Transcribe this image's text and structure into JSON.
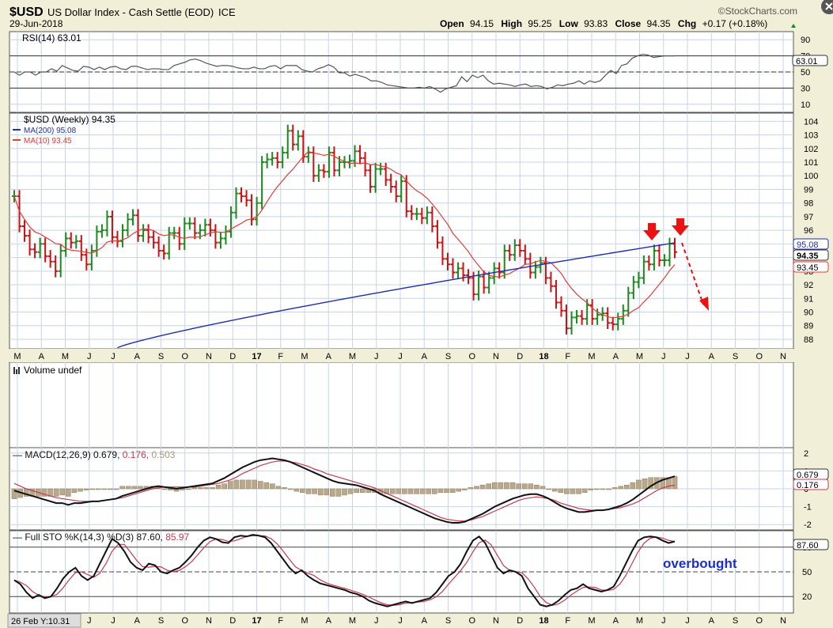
{
  "header": {
    "symbol": "$USD",
    "name": "US Dollar Index - Cash Settle (EOD)",
    "exchange": "ICE",
    "date": "29-Jun-2018",
    "watermark": "©StockCharts.com",
    "open_label": "Open",
    "open": "94.15",
    "high_label": "High",
    "high": "95.25",
    "low_label": "Low",
    "low": "93.83",
    "close_label": "Close",
    "close": "94.35",
    "chg_label": "Chg",
    "chg": "+0.17 (+0.18%)",
    "up_arrow_icon": "up-triangle-icon",
    "close_icon": "close-circle-icon"
  },
  "colors": {
    "background": "#f1efd8",
    "panel": "#ffffff",
    "grid": "#c8d4e8",
    "up_bar": "#1c8a1c",
    "down_bar": "#cc1111",
    "ma200": "#1f2fa8",
    "ma10": "#e03c3c",
    "annotation_blue": "#1a2fd0",
    "arrow_red": "#ee1111",
    "histogram": "#b9a98a"
  },
  "month_axis": {
    "labels": [
      "M",
      "A",
      "M",
      "J",
      "J",
      "A",
      "S",
      "O",
      "N",
      "D",
      "17",
      "F",
      "M",
      "A",
      "M",
      "J",
      "J",
      "A",
      "S",
      "O",
      "N",
      "D",
      "18",
      "F",
      "M",
      "A",
      "M",
      "J",
      "J",
      "A",
      "S",
      "O",
      "N"
    ],
    "bold": [
      "17",
      "18"
    ]
  },
  "bottom_readout": "26 Feb Y:10.31",
  "annotation": "overbought",
  "chart_data": [
    {
      "panel": "rsi",
      "type": "line",
      "title": "RSI(14) 63.01",
      "yticks": [
        90,
        70,
        50,
        30,
        10
      ],
      "ylim": [
        0,
        100
      ],
      "reference_lines": [
        70,
        50,
        30
      ],
      "last_value": "63.01",
      "values": [
        50,
        46,
        50,
        50,
        46,
        50,
        50,
        54,
        51,
        58,
        55,
        52,
        51,
        57,
        56,
        53,
        56,
        53,
        56,
        57,
        54,
        53,
        57,
        57,
        55,
        53,
        54,
        54,
        53,
        53,
        58,
        60,
        62,
        65,
        66,
        64,
        61,
        59,
        57,
        58,
        58,
        57,
        55,
        54,
        54,
        56,
        54,
        54,
        57,
        58,
        54,
        58,
        58,
        58,
        53,
        51,
        50,
        54,
        56,
        59,
        56,
        49,
        49,
        45,
        47,
        45,
        43,
        39,
        39,
        37,
        34,
        33,
        32,
        31,
        30,
        30,
        31,
        30,
        32,
        29,
        25,
        29,
        31,
        33,
        44,
        38,
        46,
        43,
        46,
        39,
        35,
        36,
        35,
        34,
        32,
        34,
        35,
        32,
        33,
        32,
        29,
        31,
        34,
        33,
        35,
        36,
        39,
        35,
        39,
        37,
        39,
        46,
        52,
        48,
        58,
        60,
        67,
        70,
        72,
        71,
        68,
        69,
        70,
        70,
        70
      ]
    },
    {
      "panel": "price",
      "type": "ohlc",
      "title": "$USD (Weekly) 94.35",
      "yticks": [
        104,
        103,
        102,
        101,
        100,
        99,
        98,
        97,
        96,
        95,
        94,
        93,
        92,
        91,
        90,
        89,
        88
      ],
      "ylim": [
        87.3,
        104.6
      ],
      "series": [
        {
          "name": "MA(200) 95.08",
          "last": "95.08"
        },
        {
          "name": "MA(10) 93.45",
          "last": "93.45"
        }
      ],
      "last_close": "94.35",
      "closes": [
        98.5,
        96.3,
        95.6,
        94.6,
        94.4,
        95.0,
        94.1,
        93.7,
        93.0,
        94.5,
        95.4,
        95.1,
        95.2,
        94.2,
        93.5,
        94.5,
        95.9,
        96.0,
        97.0,
        95.5,
        95.2,
        96.0,
        96.8,
        97.1,
        95.6,
        96.0,
        95.5,
        95.1,
        94.5,
        94.3,
        95.8,
        95.8,
        95.0,
        96.5,
        96.5,
        95.8,
        96.0,
        96.4,
        96.0,
        95.1,
        95.4,
        95.9,
        97.3,
        98.7,
        98.5,
        98.2,
        96.8,
        98.0,
        101.0,
        101.2,
        101.3,
        101.0,
        101.7,
        103.3,
        102.3,
        102.9,
        101.4,
        101.7,
        100.0,
        100.4,
        100.3,
        101.7,
        100.4,
        101.0,
        101.0,
        101.1,
        101.8,
        101.3,
        100.4,
        99.2,
        100.5,
        100.5,
        99.7,
        99.2,
        98.5,
        99.6,
        97.4,
        97.2,
        97.2,
        96.9,
        97.3,
        96.3,
        95.1,
        93.9,
        93.5,
        92.9,
        93.2,
        92.7,
        92.5,
        91.3,
        92.6,
        91.8,
        92.5,
        93.2,
        92.9,
        94.5,
        94.2,
        94.9,
        94.5,
        93.9,
        92.9,
        93.3,
        93.6,
        92.5,
        91.9,
        90.7,
        90.1,
        88.8,
        89.6,
        89.7,
        89.5,
        90.5,
        89.5,
        89.8,
        89.9,
        89.2,
        89.1,
        89.5,
        90.1,
        91.4,
        92.2,
        92.5,
        93.7,
        93.5,
        94.5,
        93.8,
        93.8,
        95.0,
        94.4
      ]
    },
    {
      "panel": "volume",
      "type": "bar",
      "title": "Volume undef"
    },
    {
      "panel": "macd",
      "type": "line",
      "title": "MACD(12,26,9)",
      "macd_value": "0.679",
      "signal_value": "0.176",
      "histogram_value": "0.503",
      "yticks": [
        2,
        1,
        0,
        -1,
        -2
      ],
      "ylim": [
        -2.3,
        2.3
      ],
      "last_values": [
        "0.679",
        "0.176"
      ],
      "macd": [
        -0.1,
        -0.2,
        -0.3,
        -0.4,
        -0.5,
        -0.6,
        -0.7,
        -0.8,
        -0.8,
        -0.9,
        -0.8,
        -0.8,
        -0.75,
        -0.7,
        -0.7,
        -0.65,
        -0.6,
        -0.55,
        -0.4,
        -0.3,
        -0.2,
        -0.1,
        0.0,
        0.1,
        0.15,
        0.1,
        0.05,
        0.0,
        0.05,
        0.1,
        0.15,
        0.2,
        0.25,
        0.3,
        0.45,
        0.6,
        0.8,
        1.0,
        1.2,
        1.35,
        1.5,
        1.6,
        1.65,
        1.7,
        1.65,
        1.6,
        1.5,
        1.35,
        1.2,
        1.05,
        0.9,
        0.75,
        0.6,
        0.45,
        0.35,
        0.3,
        0.25,
        0.2,
        0.1,
        0.0,
        -0.1,
        -0.3,
        -0.45,
        -0.6,
        -0.75,
        -0.9,
        -1.05,
        -1.2,
        -1.35,
        -1.5,
        -1.65,
        -1.75,
        -1.85,
        -1.9,
        -1.9,
        -1.85,
        -1.7,
        -1.55,
        -1.4,
        -1.2,
        -1.0,
        -0.85,
        -0.7,
        -0.55,
        -0.45,
        -0.35,
        -0.3,
        -0.3,
        -0.4,
        -0.55,
        -0.75,
        -0.95,
        -1.1,
        -1.2,
        -1.3,
        -1.3,
        -1.25,
        -1.2,
        -1.2,
        -1.15,
        -1.05,
        -0.95,
        -0.8,
        -0.6,
        -0.35,
        -0.1,
        0.15,
        0.35,
        0.5,
        0.6,
        0.7
      ],
      "signal": [
        0.3,
        0.15,
        0.0,
        -0.1,
        -0.2,
        -0.3,
        -0.4,
        -0.5,
        -0.55,
        -0.6,
        -0.65,
        -0.7,
        -0.7,
        -0.7,
        -0.7,
        -0.65,
        -0.6,
        -0.55,
        -0.5,
        -0.4,
        -0.3,
        -0.2,
        -0.1,
        0.0,
        0.05,
        0.1,
        0.1,
        0.1,
        0.1,
        0.1,
        0.1,
        0.15,
        0.2,
        0.25,
        0.3,
        0.4,
        0.5,
        0.65,
        0.85,
        1.0,
        1.15,
        1.3,
        1.4,
        1.5,
        1.55,
        1.55,
        1.5,
        1.45,
        1.35,
        1.25,
        1.1,
        1.0,
        0.85,
        0.75,
        0.65,
        0.55,
        0.45,
        0.35,
        0.25,
        0.15,
        0.05,
        -0.1,
        -0.25,
        -0.4,
        -0.55,
        -0.7,
        -0.85,
        -1.0,
        -1.15,
        -1.3,
        -1.45,
        -1.6,
        -1.7,
        -1.75,
        -1.8,
        -1.8,
        -1.75,
        -1.65,
        -1.55,
        -1.4,
        -1.25,
        -1.1,
        -0.95,
        -0.8,
        -0.65,
        -0.55,
        -0.5,
        -0.45,
        -0.5,
        -0.55,
        -0.65,
        -0.8,
        -0.9,
        -1.0,
        -1.1,
        -1.15,
        -1.2,
        -1.2,
        -1.2,
        -1.15,
        -1.1,
        -1.05,
        -0.95,
        -0.85,
        -0.7,
        -0.5,
        -0.3,
        -0.1,
        0.05,
        0.15,
        0.2
      ]
    },
    {
      "panel": "sto",
      "type": "line",
      "title": "Full STO %K(14,3) %D(3)",
      "k_value": "87.60",
      "d_value": "85.97",
      "yticks": [
        80,
        50,
        20
      ],
      "ylim": [
        0,
        100
      ],
      "reference_lines": [
        80,
        50,
        20
      ],
      "last_value": "87.60",
      "k": [
        40,
        35,
        25,
        18,
        22,
        18,
        20,
        30,
        42,
        50,
        55,
        45,
        40,
        45,
        60,
        75,
        90,
        85,
        75,
        62,
        55,
        52,
        60,
        58,
        50,
        48,
        52,
        55,
        62,
        70,
        80,
        88,
        92,
        90,
        86,
        85,
        92,
        94,
        93,
        95,
        94,
        92,
        85,
        75,
        65,
        55,
        48,
        52,
        45,
        40,
        36,
        34,
        32,
        30,
        28,
        25,
        23,
        20,
        15,
        12,
        10,
        8,
        10,
        12,
        14,
        12,
        14,
        16,
        18,
        25,
        35,
        45,
        50,
        60,
        75,
        88,
        93,
        85,
        70,
        55,
        48,
        52,
        50,
        45,
        30,
        20,
        10,
        8,
        10,
        15,
        22,
        28,
        30,
        35,
        30,
        28,
        26,
        28,
        32,
        45,
        60,
        75,
        88,
        92,
        93,
        92,
        88,
        85,
        87
      ]
    }
  ]
}
